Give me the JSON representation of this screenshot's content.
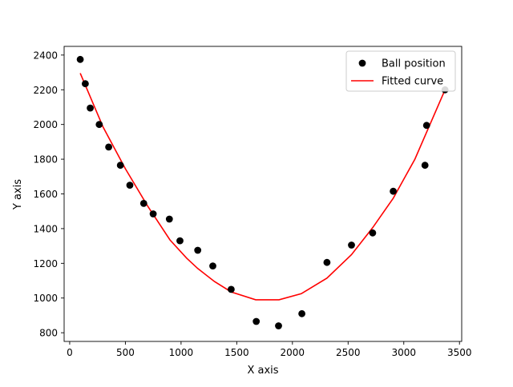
{
  "chart_data": {
    "type": "scatter",
    "title": "",
    "xlabel": "X axis",
    "ylabel": "Y axis",
    "xlim": [
      -50,
      3520
    ],
    "ylim": [
      750,
      2450
    ],
    "xticks": [
      0,
      500,
      1000,
      1500,
      2000,
      2500,
      3000,
      3500
    ],
    "yticks": [
      800,
      1000,
      1200,
      1400,
      1600,
      1800,
      2000,
      2200,
      2400
    ],
    "grid": false,
    "legend_position": "top-right",
    "series": [
      {
        "name": "Ball position",
        "kind": "scatter",
        "color": "#000000",
        "x": [
          95,
          140,
          185,
          265,
          350,
          455,
          540,
          665,
          750,
          895,
          990,
          1150,
          1285,
          1450,
          1675,
          1875,
          2085,
          2310,
          2530,
          2720,
          2905,
          3190,
          3205,
          3370
        ],
        "y": [
          2375,
          2235,
          2095,
          2000,
          1870,
          1765,
          1650,
          1545,
          1485,
          1455,
          1330,
          1275,
          1185,
          1050,
          865,
          840,
          910,
          1205,
          1305,
          1375,
          1615,
          1765,
          1995,
          2200
        ]
      },
      {
        "name": "Fitted curve",
        "kind": "line",
        "color": "#ff0000",
        "x": [
          95,
          300,
          500,
          700,
          900,
          1050,
          1150,
          1300,
          1450,
          1670,
          1880,
          2080,
          2310,
          2530,
          2720,
          2905,
          3100,
          3370
        ],
        "y": [
          2295,
          1985,
          1745,
          1530,
          1335,
          1230,
          1170,
          1095,
          1035,
          990,
          990,
          1025,
          1115,
          1250,
          1405,
          1575,
          1800,
          2200
        ]
      }
    ]
  }
}
